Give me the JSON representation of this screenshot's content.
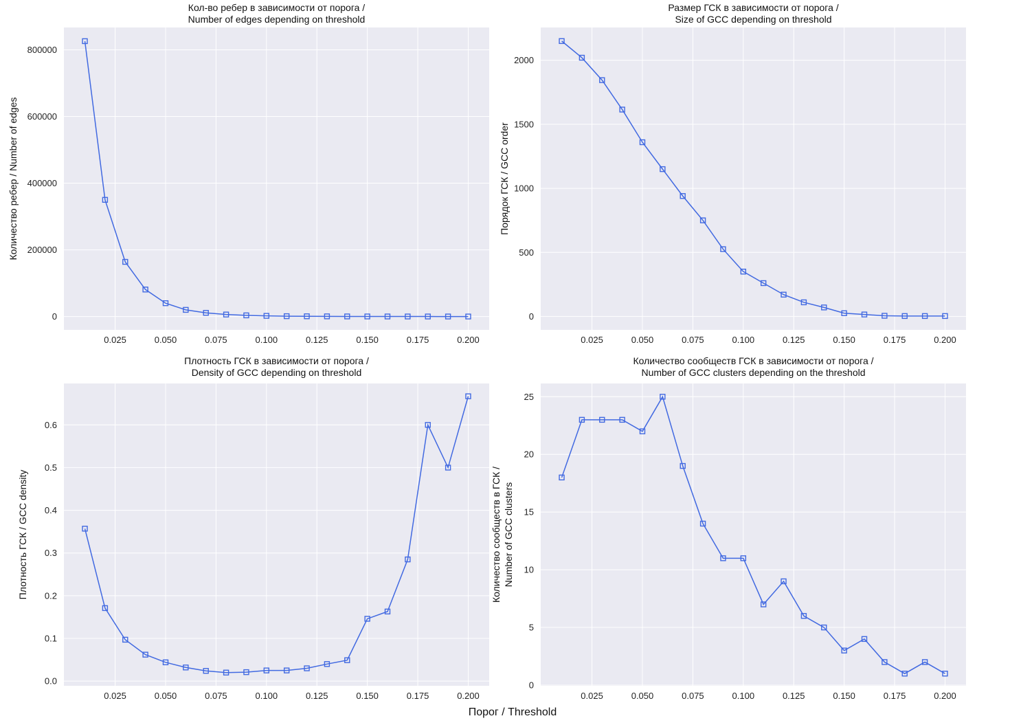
{
  "figure": {
    "shared_xlabel": "Порог / Threshold",
    "line_color": "#4169e1",
    "plot_background": "#eaeaf2",
    "grid_color": "#ffffff"
  },
  "chart_data": [
    {
      "type": "line",
      "title_lines": [
        "Кол-во ребер в зависимости от порога /",
        "Number of edges depending on threshold"
      ],
      "ylabel_lines": [
        "Количество ребер / Number of edges"
      ],
      "x": [
        0.01,
        0.02,
        0.03,
        0.04,
        0.05,
        0.06,
        0.07,
        0.08,
        0.09,
        0.1,
        0.11,
        0.12,
        0.13,
        0.14,
        0.15,
        0.16,
        0.17,
        0.18,
        0.19,
        0.2
      ],
      "y": [
        826000,
        350000,
        164000,
        81000,
        40000,
        20000,
        11000,
        6000,
        3500,
        2000,
        1000,
        700,
        500,
        300,
        200,
        150,
        100,
        80,
        60,
        40
      ],
      "xlim": [
        -0.0004,
        0.2104
      ],
      "ylim": [
        -40000,
        867000
      ],
      "xticks": [
        0.025,
        0.05,
        0.075,
        0.1,
        0.125,
        0.15,
        0.175,
        0.2
      ],
      "xtick_labels": [
        "0.025",
        "0.050",
        "0.075",
        "0.100",
        "0.125",
        "0.150",
        "0.175",
        "0.200"
      ],
      "yticks": [
        0,
        200000,
        400000,
        600000,
        800000
      ],
      "ytick_labels": [
        "0",
        "200000",
        "400000",
        "600000",
        "800000"
      ],
      "marker": "square-open",
      "grid": true
    },
    {
      "type": "line",
      "title_lines": [
        "Размер ГСК в зависимости от порога /",
        "Size of GCC depending on threshold"
      ],
      "ylabel_lines": [
        "Порядок ГСК / GCC order"
      ],
      "x": [
        0.01,
        0.02,
        0.03,
        0.04,
        0.05,
        0.06,
        0.07,
        0.08,
        0.09,
        0.1,
        0.11,
        0.12,
        0.13,
        0.14,
        0.15,
        0.16,
        0.17,
        0.18,
        0.19,
        0.2
      ],
      "y": [
        2150,
        2020,
        1845,
        1615,
        1360,
        1150,
        940,
        750,
        525,
        350,
        260,
        170,
        110,
        70,
        25,
        15,
        5,
        3,
        3,
        3
      ],
      "xlim": [
        -0.0004,
        0.2104
      ],
      "ylim": [
        -105,
        2256
      ],
      "xticks": [
        0.025,
        0.05,
        0.075,
        0.1,
        0.125,
        0.15,
        0.175,
        0.2
      ],
      "xtick_labels": [
        "0.025",
        "0.050",
        "0.075",
        "0.100",
        "0.125",
        "0.150",
        "0.175",
        "0.200"
      ],
      "yticks": [
        0,
        500,
        1000,
        1500,
        2000
      ],
      "ytick_labels": [
        "0",
        "500",
        "1000",
        "1500",
        "2000"
      ],
      "marker": "square-open",
      "grid": true
    },
    {
      "type": "line",
      "title_lines": [
        "Плотность ГСК в зависимости от порога /",
        "Density of GCC depending on threshold"
      ],
      "ylabel_lines": [
        "Плотность ГСК / GCC density"
      ],
      "x": [
        0.01,
        0.02,
        0.03,
        0.04,
        0.05,
        0.06,
        0.07,
        0.08,
        0.09,
        0.1,
        0.11,
        0.12,
        0.13,
        0.14,
        0.15,
        0.16,
        0.17,
        0.18,
        0.19,
        0.2
      ],
      "y": [
        0.357,
        0.171,
        0.097,
        0.062,
        0.044,
        0.032,
        0.024,
        0.02,
        0.021,
        0.025,
        0.025,
        0.03,
        0.04,
        0.049,
        0.146,
        0.163,
        0.285,
        0.6,
        0.5,
        0.667
      ],
      "xlim": [
        -0.0004,
        0.2104
      ],
      "ylim": [
        -0.011,
        0.697
      ],
      "xticks": [
        0.025,
        0.05,
        0.075,
        0.1,
        0.125,
        0.15,
        0.175,
        0.2
      ],
      "xtick_labels": [
        "0.025",
        "0.050",
        "0.075",
        "0.100",
        "0.125",
        "0.150",
        "0.175",
        "0.200"
      ],
      "yticks": [
        0,
        0.1,
        0.2,
        0.3,
        0.4,
        0.5,
        0.6
      ],
      "ytick_labels": [
        "0.0",
        "0.1",
        "0.2",
        "0.3",
        "0.4",
        "0.5",
        "0.6"
      ],
      "marker": "square-open",
      "grid": true
    },
    {
      "type": "line",
      "title_lines": [
        "Количество сообществ ГСК в зависимости от порога /",
        "Number of GCC clusters depending on the threshold"
      ],
      "ylabel_lines": [
        "Количество сообществ в ГСК /",
        "Number of GCC clusters"
      ],
      "x": [
        0.01,
        0.02,
        0.03,
        0.04,
        0.05,
        0.06,
        0.07,
        0.08,
        0.09,
        0.1,
        0.11,
        0.12,
        0.13,
        0.14,
        0.15,
        0.16,
        0.17,
        0.18,
        0.19,
        0.2
      ],
      "y": [
        18,
        23,
        23,
        23,
        22,
        25,
        19,
        14,
        11,
        11,
        7,
        9,
        6,
        5,
        3,
        4,
        2,
        1,
        2,
        1
      ],
      "xlim": [
        -0.0004,
        0.2104
      ],
      "ylim": [
        -0.06,
        26.15
      ],
      "xticks": [
        0.025,
        0.05,
        0.075,
        0.1,
        0.125,
        0.15,
        0.175,
        0.2
      ],
      "xtick_labels": [
        "0.025",
        "0.050",
        "0.075",
        "0.100",
        "0.125",
        "0.150",
        "0.175",
        "0.200"
      ],
      "yticks": [
        0,
        5,
        10,
        15,
        20,
        25
      ],
      "ytick_labels": [
        "0",
        "5",
        "10",
        "15",
        "20",
        "25"
      ],
      "marker": "square-open",
      "grid": true
    }
  ]
}
